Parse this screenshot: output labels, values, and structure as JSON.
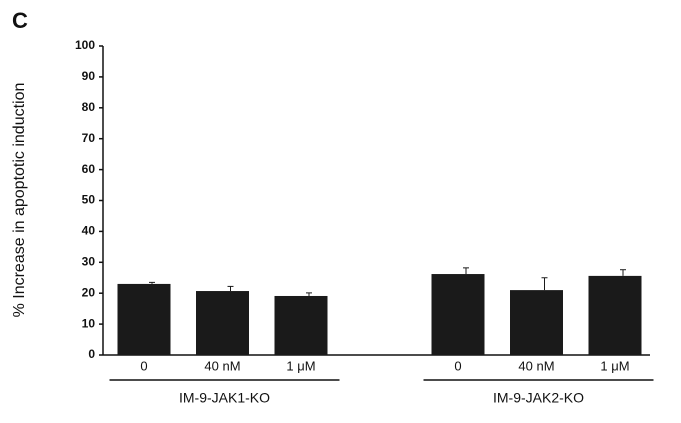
{
  "chart_data": {
    "type": "bar",
    "panel_label": "C",
    "ylabel": "% Increase in apoptotic induction",
    "categories": [
      "0",
      "40 nM",
      "1 μM",
      "0",
      "40 nM",
      "1 μM"
    ],
    "groups": [
      "IM-9-JAK1-KO",
      "IM-9-JAK2-KO"
    ],
    "values": [
      23,
      20.7,
      19.1,
      26.2,
      21,
      25.6
    ],
    "errors": [
      0.5,
      1.5,
      1,
      2,
      4,
      2
    ],
    "color": "#1a1a1a",
    "ylim": [
      0,
      100
    ],
    "yticks": [
      0,
      10,
      20,
      30,
      40,
      50,
      60,
      70,
      80,
      90,
      100
    ],
    "grid": false
  }
}
